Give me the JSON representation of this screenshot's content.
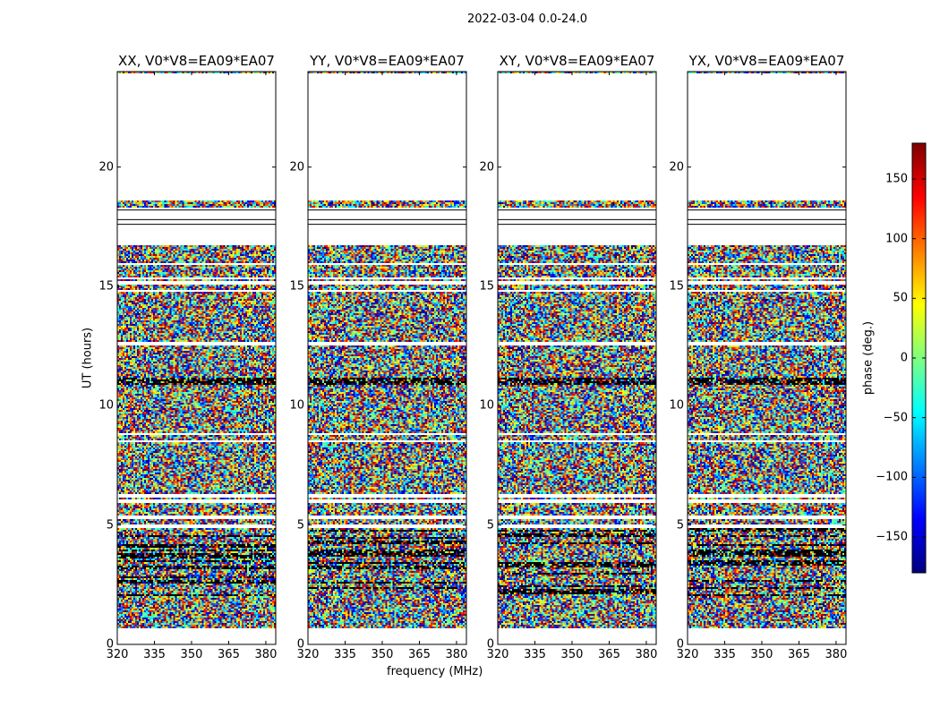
{
  "chart_data": {
    "type": "heatmap",
    "title": "2022-03-04 0.0-24.0",
    "xlabel": "frequency (MHz)",
    "ylabel": "UT (hours)",
    "xlim": [
      320,
      384
    ],
    "ylim": [
      0,
      24
    ],
    "xticks": [
      "320",
      "335",
      "350",
      "365",
      "380"
    ],
    "xtick_values": [
      320,
      335,
      350,
      365,
      380
    ],
    "yticks": [
      "0",
      "5",
      "10",
      "15",
      "20"
    ],
    "ytick_values": [
      0,
      5,
      10,
      15,
      20
    ],
    "panels": [
      {
        "title": "XX, V0*V8=EA09*EA07"
      },
      {
        "title": "YY, V0*V8=EA09*EA07"
      },
      {
        "title": "XY, V0*V8=EA09*EA07"
      },
      {
        "title": "YX, V0*V8=EA09*EA07"
      }
    ],
    "values_description": "phase noise uniformly distributed over -180..180 deg",
    "data_time_ranges_hours": [
      [
        0.7,
        16.7
      ],
      [
        18.3,
        18.6
      ],
      [
        23.9,
        24.0
      ]
    ],
    "flagged_time_ranges_hours": [
      [
        4.85,
        5.0
      ],
      [
        5.25,
        5.4
      ],
      [
        5.95,
        6.05
      ],
      [
        6.15,
        6.3
      ],
      [
        8.45,
        8.55
      ],
      [
        8.75,
        8.85
      ],
      [
        12.55,
        12.65
      ],
      [
        14.75,
        14.85
      ],
      [
        15.1,
        15.2
      ],
      [
        15.3,
        15.4
      ],
      [
        15.9,
        16.0
      ]
    ],
    "blank_lines_hours": [
      17.6,
      17.8,
      18.2
    ],
    "colorbar": {
      "label": "phase (deg.)",
      "range": [
        -180,
        180
      ],
      "ticks": [
        "150",
        "100",
        "50",
        "0",
        "−50",
        "−100",
        "−150"
      ],
      "tick_values": [
        150,
        100,
        50,
        0,
        -50,
        -100,
        -150
      ],
      "colormap": "jet"
    }
  }
}
